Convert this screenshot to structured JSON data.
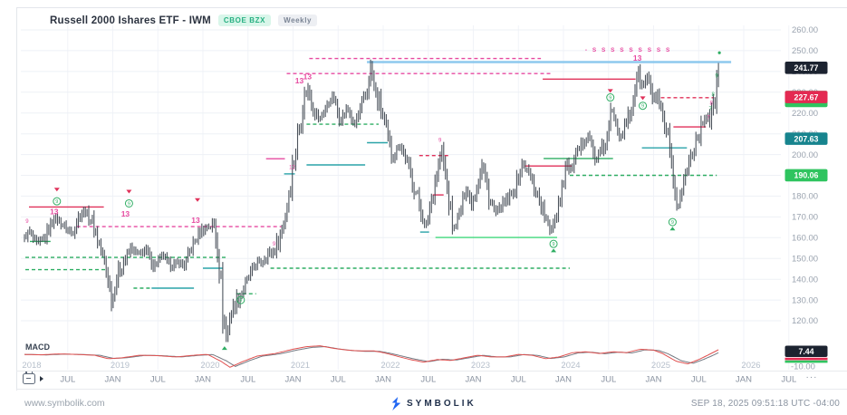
{
  "header": {
    "title": "Russell 2000 Ishares ETF - IWM",
    "exchange": "CBOE BZX",
    "interval": "Weekly"
  },
  "footer": {
    "website": "www.symbolik.com",
    "brand": "SYMBOLIK",
    "timestamp": "SEP 18, 2025 09:51:18 UTC -04:00"
  },
  "date_axis": {
    "more_label": "···"
  },
  "colors": {
    "bar": "#3e454f",
    "grid": "#eef1f6",
    "vgrid": "#f1f3f8",
    "axis_text": "#9aa3af",
    "month_text": "#8a93a1",
    "year_text": "#b6bfcb",
    "pink": "#e649a0",
    "red": "#e0315a",
    "green": "#2fae63",
    "bright_green": "#42d97c",
    "teal": "#2aa3a8",
    "blue": "#8ec9ee",
    "badge_dark": "#1c2330",
    "badge_red": "#e42a52",
    "badge_teal": "#17848e",
    "badge_green": "#2fc45f",
    "macd_line": "#e0504f",
    "macd_signal": "#5a616c",
    "separator": "#e8eaee"
  },
  "chart_data": {
    "type": "bar",
    "title": "Russell 2000 Ishares ETF - IWM, Weekly",
    "x_range": [
      2018.0,
      2026.6
    ],
    "y_range": [
      108,
      262
    ],
    "y_ticks": [
      260,
      250,
      240,
      230,
      220,
      210,
      200,
      190,
      180,
      170,
      160,
      150,
      140,
      130,
      120
    ],
    "y_tick_labels": [
      "260.00",
      "250.00",
      "240.00",
      "230.00",
      "220.00",
      "210.00",
      "200.00",
      "190.00",
      "180.00",
      "170.00",
      "160.00",
      "150.00",
      "140.00",
      "130.00",
      "120.00"
    ],
    "month_ticks": [
      [
        2018.5,
        "JUL"
      ],
      [
        2019.0,
        "JAN"
      ],
      [
        2019.5,
        "JUL"
      ],
      [
        2020.0,
        "JAN"
      ],
      [
        2020.5,
        "JUL"
      ],
      [
        2021.0,
        "JAN"
      ],
      [
        2021.5,
        "JUL"
      ],
      [
        2022.0,
        "JAN"
      ],
      [
        2022.5,
        "JUL"
      ],
      [
        2023.0,
        "JAN"
      ],
      [
        2023.5,
        "JUL"
      ],
      [
        2024.0,
        "JAN"
      ],
      [
        2024.5,
        "JUL"
      ],
      [
        2025.0,
        "JAN"
      ],
      [
        2025.5,
        "JUL"
      ],
      [
        2026.0,
        "JAN"
      ],
      [
        2026.5,
        "JUL"
      ]
    ],
    "year_labels": [
      [
        2018.04,
        "2018"
      ],
      [
        2019.02,
        "2019"
      ],
      [
        2020.02,
        "2020"
      ],
      [
        2021.02,
        "2021"
      ],
      [
        2022.02,
        "2022"
      ],
      [
        2023.02,
        "2023"
      ],
      [
        2024.02,
        "2024"
      ],
      [
        2025.02,
        "2025"
      ],
      [
        2026.02,
        "2026"
      ]
    ],
    "price_anchors": [
      [
        2018.02,
        160
      ],
      [
        2018.08,
        163
      ],
      [
        2018.15,
        157
      ],
      [
        2018.25,
        160
      ],
      [
        2018.35,
        170
      ],
      [
        2018.45,
        166
      ],
      [
        2018.55,
        162
      ],
      [
        2018.63,
        171
      ],
      [
        2018.68,
        173
      ],
      [
        2018.78,
        167
      ],
      [
        2018.88,
        152
      ],
      [
        2018.95,
        140
      ],
      [
        2018.99,
        128
      ],
      [
        2019.05,
        142
      ],
      [
        2019.12,
        148
      ],
      [
        2019.2,
        155
      ],
      [
        2019.3,
        152
      ],
      [
        2019.38,
        154
      ],
      [
        2019.45,
        146
      ],
      [
        2019.55,
        152
      ],
      [
        2019.65,
        146
      ],
      [
        2019.72,
        148
      ],
      [
        2019.8,
        147
      ],
      [
        2019.88,
        156
      ],
      [
        2019.97,
        163
      ],
      [
        2020.05,
        165
      ],
      [
        2020.12,
        166
      ],
      [
        2020.17,
        155
      ],
      [
        2020.22,
        125
      ],
      [
        2020.26,
        110
      ],
      [
        2020.3,
        122
      ],
      [
        2020.35,
        128
      ],
      [
        2020.42,
        133
      ],
      [
        2020.5,
        140
      ],
      [
        2020.58,
        147
      ],
      [
        2020.65,
        148
      ],
      [
        2020.72,
        152
      ],
      [
        2020.78,
        153
      ],
      [
        2020.85,
        160
      ],
      [
        2020.92,
        172
      ],
      [
        2020.98,
        190
      ],
      [
        2021.05,
        208
      ],
      [
        2021.12,
        227
      ],
      [
        2021.17,
        232
      ],
      [
        2021.22,
        222
      ],
      [
        2021.3,
        217
      ],
      [
        2021.38,
        224
      ],
      [
        2021.45,
        228
      ],
      [
        2021.52,
        216
      ],
      [
        2021.6,
        222
      ],
      [
        2021.68,
        214
      ],
      [
        2021.75,
        222
      ],
      [
        2021.82,
        230
      ],
      [
        2021.86,
        242
      ],
      [
        2021.92,
        228
      ],
      [
        2021.98,
        222
      ],
      [
        2022.05,
        208
      ],
      [
        2022.1,
        198
      ],
      [
        2022.18,
        205
      ],
      [
        2022.25,
        198
      ],
      [
        2022.32,
        188
      ],
      [
        2022.4,
        176
      ],
      [
        2022.47,
        164
      ],
      [
        2022.53,
        178
      ],
      [
        2022.6,
        192
      ],
      [
        2022.65,
        202
      ],
      [
        2022.72,
        180
      ],
      [
        2022.78,
        163
      ],
      [
        2022.85,
        172
      ],
      [
        2022.92,
        184
      ],
      [
        2022.98,
        176
      ],
      [
        2023.05,
        186
      ],
      [
        2023.1,
        196
      ],
      [
        2023.18,
        178
      ],
      [
        2023.25,
        172
      ],
      [
        2023.32,
        176
      ],
      [
        2023.4,
        179
      ],
      [
        2023.48,
        186
      ],
      [
        2023.55,
        196
      ],
      [
        2023.62,
        190
      ],
      [
        2023.7,
        182
      ],
      [
        2023.78,
        172
      ],
      [
        2023.85,
        163
      ],
      [
        2023.92,
        172
      ],
      [
        2023.98,
        184
      ],
      [
        2024.03,
        196
      ],
      [
        2024.08,
        192
      ],
      [
        2024.15,
        200
      ],
      [
        2024.22,
        206
      ],
      [
        2024.28,
        210
      ],
      [
        2024.35,
        197
      ],
      [
        2024.42,
        202
      ],
      [
        2024.48,
        206
      ],
      [
        2024.53,
        222
      ],
      [
        2024.58,
        216
      ],
      [
        2024.63,
        208
      ],
      [
        2024.7,
        216
      ],
      [
        2024.75,
        220
      ],
      [
        2024.82,
        240
      ],
      [
        2024.88,
        232
      ],
      [
        2024.93,
        238
      ],
      [
        2024.98,
        228
      ],
      [
        2025.05,
        226
      ],
      [
        2025.1,
        216
      ],
      [
        2025.16,
        206
      ],
      [
        2025.22,
        183
      ],
      [
        2025.27,
        175
      ],
      [
        2025.33,
        186
      ],
      [
        2025.4,
        198
      ],
      [
        2025.46,
        206
      ],
      [
        2025.52,
        212
      ],
      [
        2025.58,
        220
      ],
      [
        2025.63,
        217
      ],
      [
        2025.68,
        226
      ],
      [
        2025.72,
        240
      ]
    ],
    "levels": [
      {
        "t1": 2018.07,
        "t2": 2018.9,
        "p": 174.8,
        "c": "red",
        "d": 0
      },
      {
        "t1": 2018.6,
        "t2": 2020.87,
        "p": 165.3,
        "c": "pink",
        "d": 1
      },
      {
        "t1": 2018.08,
        "t2": 2018.31,
        "p": 158.2,
        "c": "green",
        "d": 0
      },
      {
        "t1": 2018.03,
        "t2": 2020.27,
        "p": 150.5,
        "c": "green",
        "d": 1
      },
      {
        "t1": 2018.03,
        "t2": 2018.93,
        "p": 144.6,
        "c": "green",
        "d": 1
      },
      {
        "t1": 2019.23,
        "t2": 2019.43,
        "p": 135.7,
        "c": "green",
        "d": 1
      },
      {
        "t1": 2019.43,
        "t2": 2019.9,
        "p": 135.7,
        "c": "teal",
        "d": 0
      },
      {
        "t1": 2020.0,
        "t2": 2020.22,
        "p": 145.3,
        "c": "teal",
        "d": 0
      },
      {
        "t1": 2020.37,
        "t2": 2020.59,
        "p": 133.0,
        "c": "green",
        "d": 1
      },
      {
        "t1": 2020.75,
        "t2": 2024.07,
        "p": 145.3,
        "c": "green",
        "d": 1
      },
      {
        "t1": 2020.7,
        "t2": 2020.91,
        "p": 198.0,
        "c": "pink",
        "d": 0
      },
      {
        "t1": 2020.93,
        "t2": 2023.87,
        "p": 239.0,
        "c": "pink",
        "d": 1
      },
      {
        "t1": 2021.18,
        "t2": 2023.75,
        "p": 246.2,
        "c": "pink",
        "d": 1
      },
      {
        "t1": 2021.82,
        "t2": 2025.86,
        "p": 244.5,
        "c": "blue",
        "d": 0,
        "w": 2.4
      },
      {
        "t1": 2021.15,
        "t2": 2021.95,
        "p": 214.6,
        "c": "green",
        "d": 1
      },
      {
        "t1": 2021.82,
        "t2": 2022.05,
        "p": 205.7,
        "c": "teal",
        "d": 0
      },
      {
        "t1": 2021.15,
        "t2": 2021.8,
        "p": 195.0,
        "c": "teal",
        "d": 0
      },
      {
        "t1": 2020.9,
        "t2": 2021.02,
        "p": 190.7,
        "c": "teal",
        "d": 0
      },
      {
        "t1": 2022.4,
        "t2": 2022.75,
        "p": 199.5,
        "c": "red",
        "d": 1
      },
      {
        "t1": 2022.41,
        "t2": 2022.51,
        "p": 162.7,
        "c": "teal",
        "d": 0
      },
      {
        "t1": 2022.55,
        "t2": 2022.67,
        "p": 180.6,
        "c": "red",
        "d": 0
      },
      {
        "t1": 2023.57,
        "t2": 2024.09,
        "p": 194.5,
        "c": "red",
        "d": 0
      },
      {
        "t1": 2023.78,
        "t2": 2024.55,
        "p": 198.1,
        "c": "green",
        "d": 0
      },
      {
        "t1": 2024.07,
        "t2": 2025.7,
        "p": 190.0,
        "c": "green",
        "d": 1
      },
      {
        "t1": 2022.58,
        "t2": 2023.93,
        "p": 160.1,
        "c": "bright_green",
        "d": 0
      },
      {
        "t1": 2023.77,
        "t2": 2024.8,
        "p": 236.3,
        "c": "red",
        "d": 0
      },
      {
        "t1": 2025.08,
        "t2": 2025.67,
        "p": 227.4,
        "c": "red",
        "d": 1
      },
      {
        "t1": 2025.22,
        "t2": 2025.58,
        "p": 213.3,
        "c": "red",
        "d": 0
      },
      {
        "t1": 2024.87,
        "t2": 2025.37,
        "p": 203.2,
        "c": "teal",
        "d": 0
      }
    ],
    "markers": [
      {
        "k": "td",
        "t": 2018.38,
        "p": 184
      },
      {
        "k": "c9",
        "t": 2018.38,
        "p": 177.5
      },
      {
        "k": "13",
        "t": 2018.35,
        "p": 172.5
      },
      {
        "k": "tp",
        "t": 2018.05,
        "p": 168,
        "x": "9"
      },
      {
        "k": "td",
        "t": 2019.18,
        "p": 183
      },
      {
        "k": "c9",
        "t": 2019.18,
        "p": 176.5
      },
      {
        "k": "13",
        "t": 2019.14,
        "p": 171.5
      },
      {
        "k": "td",
        "t": 2019.94,
        "p": 179
      },
      {
        "k": "13",
        "t": 2019.92,
        "p": 168.5
      },
      {
        "k": "tu",
        "t": 2020.24,
        "p": 106
      },
      {
        "k": "c9",
        "t": 2020.42,
        "p": 130
      },
      {
        "k": "tp",
        "t": 2020.79,
        "p": 157,
        "x": "9"
      },
      {
        "k": "tp",
        "t": 2020.99,
        "p": 194,
        "x": "12"
      },
      {
        "k": "13",
        "t": 2021.07,
        "p": 235.5
      },
      {
        "k": "13",
        "t": 2021.16,
        "p": 237.5
      },
      {
        "k": "tp",
        "t": 2022.63,
        "p": 207,
        "x": "9"
      },
      {
        "k": "c9",
        "t": 2023.89,
        "p": 157
      },
      {
        "k": "tu",
        "t": 2023.89,
        "p": 153
      },
      {
        "k": "td",
        "t": 2024.52,
        "p": 231.5
      },
      {
        "k": "c9",
        "t": 2024.52,
        "p": 227.5
      },
      {
        "k": "srow",
        "t": 2024.24,
        "p": 250.5,
        "x": "- S S S S S S S S S"
      },
      {
        "k": "13",
        "t": 2024.82,
        "p": 246.5
      },
      {
        "k": "td",
        "t": 2024.88,
        "p": 228
      },
      {
        "k": "c9",
        "t": 2024.88,
        "p": 223.5
      },
      {
        "k": "c9",
        "t": 2025.21,
        "p": 167.5
      },
      {
        "k": "tu",
        "t": 2025.21,
        "p": 163.5
      },
      {
        "k": "tp",
        "t": 2025.61,
        "p": 218,
        "x": "7"
      },
      {
        "k": "tp",
        "t": 2025.64,
        "p": 225,
        "x": "8"
      },
      {
        "k": "tg",
        "t": 2025.63,
        "p": 222,
        "x": "7"
      },
      {
        "k": "tg",
        "t": 2025.66,
        "p": 229,
        "x": "8"
      },
      {
        "k": "tg",
        "t": 2025.7,
        "p": 238,
        "x": "9"
      },
      {
        "k": "dot",
        "t": 2025.73,
        "p": 249
      }
    ],
    "price_badges": [
      {
        "label": "241.77",
        "p": 241.77,
        "bg": "badge_dark"
      },
      {
        "label": "227.67",
        "p": 227.67,
        "bg": "badge_red",
        "sliver_bg": "badge_green"
      },
      {
        "label": "207.63",
        "p": 207.63,
        "bg": "badge_teal"
      },
      {
        "label": "190.06",
        "p": 190.06,
        "bg": "badge_green"
      }
    ],
    "macd": {
      "label": "MACD",
      "value_badge": "7.44",
      "lower_tick_label": "-10.00",
      "series": [
        [
          2018.02,
          2
        ],
        [
          2018.2,
          1.5
        ],
        [
          2018.4,
          2.5
        ],
        [
          2018.6,
          2
        ],
        [
          2018.8,
          1
        ],
        [
          2018.95,
          -3
        ],
        [
          2019.1,
          -2
        ],
        [
          2019.3,
          1
        ],
        [
          2019.5,
          0.5
        ],
        [
          2019.7,
          -1
        ],
        [
          2019.9,
          1
        ],
        [
          2020.05,
          2
        ],
        [
          2020.2,
          -6
        ],
        [
          2020.3,
          -13
        ],
        [
          2020.45,
          -6
        ],
        [
          2020.6,
          0
        ],
        [
          2020.8,
          3
        ],
        [
          2021.0,
          8
        ],
        [
          2021.15,
          11
        ],
        [
          2021.3,
          12
        ],
        [
          2021.45,
          9
        ],
        [
          2021.6,
          7
        ],
        [
          2021.75,
          6
        ],
        [
          2021.9,
          6
        ],
        [
          2022.0,
          4
        ],
        [
          2022.15,
          0
        ],
        [
          2022.3,
          -4
        ],
        [
          2022.45,
          -7
        ],
        [
          2022.6,
          -4
        ],
        [
          2022.75,
          -5
        ],
        [
          2022.9,
          -2
        ],
        [
          2023.05,
          1
        ],
        [
          2023.2,
          -1
        ],
        [
          2023.35,
          -1
        ],
        [
          2023.5,
          2
        ],
        [
          2023.65,
          1
        ],
        [
          2023.8,
          -3
        ],
        [
          2023.95,
          -1
        ],
        [
          2024.1,
          4
        ],
        [
          2024.25,
          5
        ],
        [
          2024.4,
          3
        ],
        [
          2024.55,
          5
        ],
        [
          2024.7,
          4
        ],
        [
          2024.85,
          8
        ],
        [
          2025.0,
          7
        ],
        [
          2025.1,
          3
        ],
        [
          2025.25,
          -6
        ],
        [
          2025.38,
          -9
        ],
        [
          2025.5,
          -4
        ],
        [
          2025.6,
          1
        ],
        [
          2025.72,
          7.44
        ]
      ]
    }
  }
}
